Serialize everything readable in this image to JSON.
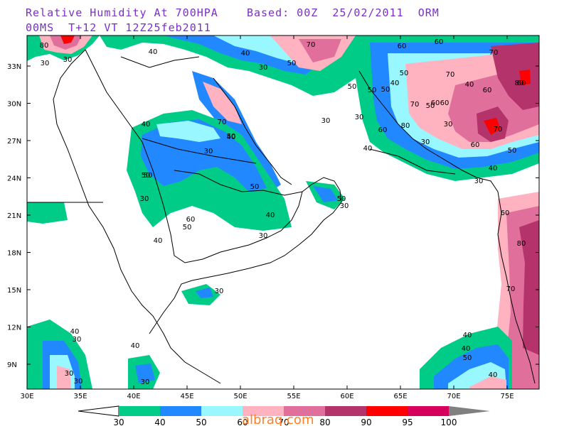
{
  "header": {
    "line1": "Relative Humidity At 700HPA    Based: 00Z  25/02/2011  ORM",
    "line2": "00MS  T+12 VT 12Z25feb2011"
  },
  "axes": {
    "lat_labels": [
      "33N",
      "30N",
      "27N",
      "24N",
      "21N",
      "18N",
      "15N",
      "12N",
      "9N"
    ],
    "lon_labels": [
      "30E",
      "35E",
      "40E",
      "45E",
      "50E",
      "55E",
      "60E",
      "65E",
      "70E",
      "75E"
    ]
  },
  "legend": {
    "levels": [
      "30",
      "40",
      "50",
      "60",
      "70",
      "80",
      "90",
      "95",
      "100"
    ],
    "colors": [
      "#00cc88",
      "#2288ff",
      "#99f8ff",
      "#ffb3c1",
      "#e06f9c",
      "#b3336a",
      "#ff0000",
      "#d6005c"
    ],
    "arrow_low_color": "#ffffff",
    "arrow_high_color": "#808080"
  },
  "contour_labels": [
    "80",
    "30",
    "40",
    "30",
    "40",
    "50",
    "30",
    "70",
    "60",
    "50",
    "60",
    "70",
    "70",
    "60",
    "80",
    "40",
    "50",
    "50",
    "60",
    "40",
    "60",
    "80",
    "50",
    "30",
    "70",
    "60",
    "40",
    "50",
    "30",
    "30",
    "30",
    "50",
    "40",
    "30",
    "40",
    "50",
    "70",
    "50",
    "50",
    "40",
    "60",
    "30",
    "30",
    "50",
    "30",
    "60",
    "50",
    "40",
    "30",
    "40",
    "30",
    "40",
    "30",
    "40",
    "30",
    "30",
    "30",
    "40",
    "50",
    "40",
    "50",
    "40",
    "60",
    "70",
    "70",
    "80",
    "60"
  ],
  "watermark": "albraq.com"
}
